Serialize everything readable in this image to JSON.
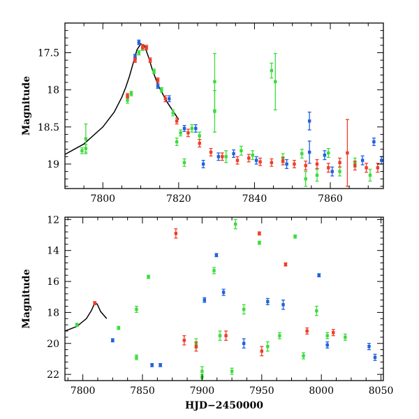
{
  "chart_data": [
    {
      "type": "scatter",
      "panel": "top",
      "title": "",
      "xlabel": "",
      "ylabel": "Magnitude",
      "xlim": [
        7790,
        7874
      ],
      "ylim": [
        19.33,
        17.1
      ],
      "y_inverted": true,
      "x_ticks": [
        7800,
        7820,
        7840,
        7860
      ],
      "x_tick_labels": [
        "7800",
        "7820",
        "7840",
        "7860"
      ],
      "y_ticks": [
        17.5,
        18,
        18.5,
        19
      ],
      "y_tick_labels": [
        "17.5",
        "18",
        "18.5",
        "19"
      ],
      "model_curve": {
        "x": [
          7790,
          7795,
          7800,
          7803,
          7805,
          7806,
          7807,
          7808,
          7809,
          7810,
          7811,
          7812,
          7813,
          7814,
          7815,
          7817,
          7820
        ],
        "y": [
          18.87,
          18.73,
          18.5,
          18.3,
          18.1,
          17.97,
          17.82,
          17.64,
          17.46,
          17.38,
          17.41,
          17.55,
          17.72,
          17.86,
          17.98,
          18.17,
          18.4
        ]
      },
      "series": [
        {
          "name": "",
          "color": "#3cdc3c",
          "points": [
            {
              "x": 7794.5,
              "y": 18.82,
              "err": 0.04
            },
            {
              "x": 7795.5,
              "y": 18.66,
              "err": 0.2
            },
            {
              "x": 7795.5,
              "y": 18.79,
              "err": 0.05
            },
            {
              "x": 7806.5,
              "y": 18.14,
              "err": 0.04
            },
            {
              "x": 7807.5,
              "y": 18.05,
              "err": 0.03
            },
            {
              "x": 7809.5,
              "y": 17.5,
              "err": 0.03
            },
            {
              "x": 7810.5,
              "y": 17.44,
              "err": 0.03
            },
            {
              "x": 7813.5,
              "y": 17.75,
              "err": 0.03
            },
            {
              "x": 7815.5,
              "y": 18.0,
              "err": 0.03
            },
            {
              "x": 7818.5,
              "y": 18.31,
              "err": 0.04
            },
            {
              "x": 7819.5,
              "y": 18.7,
              "err": 0.05
            },
            {
              "x": 7820.5,
              "y": 18.58,
              "err": 0.04
            },
            {
              "x": 7821.5,
              "y": 18.98,
              "err": 0.05
            },
            {
              "x": 7823.5,
              "y": 18.52,
              "err": 0.05
            },
            {
              "x": 7825.5,
              "y": 18.62,
              "err": 0.05
            },
            {
              "x": 7829.5,
              "y": 17.89,
              "err": 0.38
            },
            {
              "x": 7829.5,
              "y": 18.29,
              "err": 0.28
            },
            {
              "x": 7832.5,
              "y": 18.9,
              "err": 0.08
            },
            {
              "x": 7836.5,
              "y": 18.82,
              "err": 0.06
            },
            {
              "x": 7839.5,
              "y": 18.88,
              "err": 0.06
            },
            {
              "x": 7844.5,
              "y": 17.74,
              "err": 0.1
            },
            {
              "x": 7845.5,
              "y": 17.89,
              "err": 0.38
            },
            {
              "x": 7847.5,
              "y": 18.92,
              "err": 0.06
            },
            {
              "x": 7852.5,
              "y": 18.86,
              "err": 0.06
            },
            {
              "x": 7853.5,
              "y": 19.2,
              "err": 0.1
            },
            {
              "x": 7856.5,
              "y": 19.15,
              "err": 0.08
            },
            {
              "x": 7859.5,
              "y": 18.85,
              "err": 0.06
            },
            {
              "x": 7862.5,
              "y": 19.1,
              "err": 0.06
            },
            {
              "x": 7866.5,
              "y": 18.98,
              "err": 0.06
            },
            {
              "x": 7870.5,
              "y": 19.15,
              "err": 0.08
            }
          ]
        },
        {
          "name": "",
          "color": "#2060dc",
          "points": [
            {
              "x": 7809.5,
              "y": 17.36,
              "err": 0.03
            },
            {
              "x": 7808.5,
              "y": 17.55,
              "err": 0.03
            },
            {
              "x": 7814.5,
              "y": 17.95,
              "err": 0.03
            },
            {
              "x": 7817.5,
              "y": 18.12,
              "err": 0.04
            },
            {
              "x": 7821.5,
              "y": 18.52,
              "err": 0.04
            },
            {
              "x": 7824.5,
              "y": 18.52,
              "err": 0.05
            },
            {
              "x": 7826.5,
              "y": 19.0,
              "err": 0.05
            },
            {
              "x": 7830.5,
              "y": 18.9,
              "err": 0.05
            },
            {
              "x": 7834.5,
              "y": 18.86,
              "err": 0.05
            },
            {
              "x": 7840.5,
              "y": 18.95,
              "err": 0.05
            },
            {
              "x": 7848.5,
              "y": 19.0,
              "err": 0.06
            },
            {
              "x": 7854.5,
              "y": 18.42,
              "err": 0.12
            },
            {
              "x": 7854.5,
              "y": 18.84,
              "err": 0.15
            },
            {
              "x": 7858.5,
              "y": 18.88,
              "err": 0.06
            },
            {
              "x": 7860.5,
              "y": 19.1,
              "err": 0.06
            },
            {
              "x": 7868.5,
              "y": 18.95,
              "err": 0.06
            },
            {
              "x": 7871.5,
              "y": 18.7,
              "err": 0.05
            },
            {
              "x": 7873.5,
              "y": 18.95,
              "err": 0.05
            }
          ]
        },
        {
          "name": "",
          "color": "#f03c28",
          "points": [
            {
              "x": 7806.5,
              "y": 18.08,
              "err": 0.03
            },
            {
              "x": 7808.5,
              "y": 17.6,
              "err": 0.03
            },
            {
              "x": 7810.5,
              "y": 17.42,
              "err": 0.03
            },
            {
              "x": 7811.5,
              "y": 17.43,
              "err": 0.03
            },
            {
              "x": 7812.5,
              "y": 17.6,
              "err": 0.03
            },
            {
              "x": 7814.5,
              "y": 17.87,
              "err": 0.03
            },
            {
              "x": 7816.5,
              "y": 18.12,
              "err": 0.04
            },
            {
              "x": 7819.5,
              "y": 18.42,
              "err": 0.04
            },
            {
              "x": 7822.5,
              "y": 18.58,
              "err": 0.05
            },
            {
              "x": 7825.5,
              "y": 18.72,
              "err": 0.05
            },
            {
              "x": 7828.5,
              "y": 18.84,
              "err": 0.05
            },
            {
              "x": 7831.5,
              "y": 18.9,
              "err": 0.05
            },
            {
              "x": 7835.5,
              "y": 18.95,
              "err": 0.05
            },
            {
              "x": 7838.5,
              "y": 18.92,
              "err": 0.05
            },
            {
              "x": 7841.5,
              "y": 18.97,
              "err": 0.05
            },
            {
              "x": 7844.5,
              "y": 18.98,
              "err": 0.05
            },
            {
              "x": 7847.5,
              "y": 18.96,
              "err": 0.05
            },
            {
              "x": 7850.5,
              "y": 19.0,
              "err": 0.05
            },
            {
              "x": 7853.5,
              "y": 19.02,
              "err": 0.06
            },
            {
              "x": 7856.5,
              "y": 19.0,
              "err": 0.06
            },
            {
              "x": 7859.5,
              "y": 19.05,
              "err": 0.06
            },
            {
              "x": 7862.5,
              "y": 18.98,
              "err": 0.06
            },
            {
              "x": 7864.5,
              "y": 18.85,
              "err": 0.45
            },
            {
              "x": 7866.5,
              "y": 19.02,
              "err": 0.06
            },
            {
              "x": 7869.5,
              "y": 19.05,
              "err": 0.06
            },
            {
              "x": 7872.5,
              "y": 19.05,
              "err": 0.06
            }
          ]
        }
      ]
    },
    {
      "type": "scatter",
      "panel": "bottom",
      "title": "",
      "xlabel": "HJD−2450000",
      "ylabel": "Magnitude",
      "xlim": [
        7785,
        8052
      ],
      "ylim": [
        22.4,
        11.85
      ],
      "y_inverted": true,
      "x_ticks": [
        7800,
        7850,
        7900,
        7950,
        8000,
        8050
      ],
      "x_tick_labels": [
        "7800",
        "7850",
        "7900",
        "7950",
        "8000",
        "8050"
      ],
      "y_ticks": [
        12,
        14,
        16,
        18,
        20,
        22
      ],
      "y_tick_labels": [
        "12",
        "14",
        "16",
        "18",
        "20",
        "22"
      ],
      "model_curve": {
        "x": [
          7785,
          7795,
          7803,
          7807,
          7810,
          7812,
          7815,
          7820
        ],
        "y": [
          19.2,
          18.9,
          18.4,
          17.9,
          17.4,
          17.45,
          17.95,
          18.4
        ]
      },
      "series": [
        {
          "name": "",
          "color": "#3cdc3c",
          "points": [
            {
              "x": 7795,
              "y": 18.8,
              "err": 0.1
            },
            {
              "x": 7830,
              "y": 19.0,
              "err": 0.1
            },
            {
              "x": 7845,
              "y": 17.8,
              "err": 0.2
            },
            {
              "x": 7845,
              "y": 20.9,
              "err": 0.15
            },
            {
              "x": 7855,
              "y": 15.7,
              "err": 0.1
            },
            {
              "x": 7895,
              "y": 20.0,
              "err": 0.3
            },
            {
              "x": 7900,
              "y": 21.8,
              "err": 0.3
            },
            {
              "x": 7900,
              "y": 22.2,
              "err": 0.2
            },
            {
              "x": 7910,
              "y": 15.3,
              "err": 0.2
            },
            {
              "x": 7915,
              "y": 19.5,
              "err": 0.3
            },
            {
              "x": 7925,
              "y": 21.8,
              "err": 0.2
            },
            {
              "x": 7928,
              "y": 12.3,
              "err": 0.3
            },
            {
              "x": 7935,
              "y": 17.8,
              "err": 0.3
            },
            {
              "x": 7948,
              "y": 13.5,
              "err": 0.1
            },
            {
              "x": 7955,
              "y": 20.2,
              "err": 0.3
            },
            {
              "x": 7965,
              "y": 19.5,
              "err": 0.2
            },
            {
              "x": 7978,
              "y": 13.1,
              "err": 0.1
            },
            {
              "x": 7985,
              "y": 20.8,
              "err": 0.2
            },
            {
              "x": 7996,
              "y": 17.9,
              "err": 0.3
            },
            {
              "x": 8005,
              "y": 19.5,
              "err": 0.2
            },
            {
              "x": 8020,
              "y": 19.6,
              "err": 0.2
            }
          ]
        },
        {
          "name": "",
          "color": "#2060dc",
          "points": [
            {
              "x": 7825,
              "y": 19.8,
              "err": 0.1
            },
            {
              "x": 7858,
              "y": 21.4,
              "err": 0.1
            },
            {
              "x": 7865,
              "y": 21.4,
              "err": 0.1
            },
            {
              "x": 7902,
              "y": 17.2,
              "err": 0.15
            },
            {
              "x": 7912,
              "y": 14.3,
              "err": 0.1
            },
            {
              "x": 7918,
              "y": 16.7,
              "err": 0.2
            },
            {
              "x": 7935,
              "y": 20.0,
              "err": 0.3
            },
            {
              "x": 7955,
              "y": 17.3,
              "err": 0.2
            },
            {
              "x": 7968,
              "y": 17.5,
              "err": 0.3
            },
            {
              "x": 7998,
              "y": 15.6,
              "err": 0.1
            },
            {
              "x": 8005,
              "y": 20.1,
              "err": 0.2
            },
            {
              "x": 8040,
              "y": 20.2,
              "err": 0.2
            },
            {
              "x": 8045,
              "y": 20.9,
              "err": 0.2
            }
          ]
        },
        {
          "name": "",
          "color": "#f03c28",
          "points": [
            {
              "x": 7810,
              "y": 17.4,
              "err": 0.1
            },
            {
              "x": 7878,
              "y": 12.9,
              "err": 0.3
            },
            {
              "x": 7885,
              "y": 19.8,
              "err": 0.3
            },
            {
              "x": 7895,
              "y": 20.2,
              "err": 0.3
            },
            {
              "x": 7920,
              "y": 19.5,
              "err": 0.3
            },
            {
              "x": 7948,
              "y": 12.9,
              "err": 0.1
            },
            {
              "x": 7950,
              "y": 20.5,
              "err": 0.3
            },
            {
              "x": 7970,
              "y": 14.9,
              "err": 0.1
            },
            {
              "x": 7988,
              "y": 19.2,
              "err": 0.2
            },
            {
              "x": 8010,
              "y": 19.3,
              "err": 0.2
            }
          ]
        }
      ]
    }
  ]
}
